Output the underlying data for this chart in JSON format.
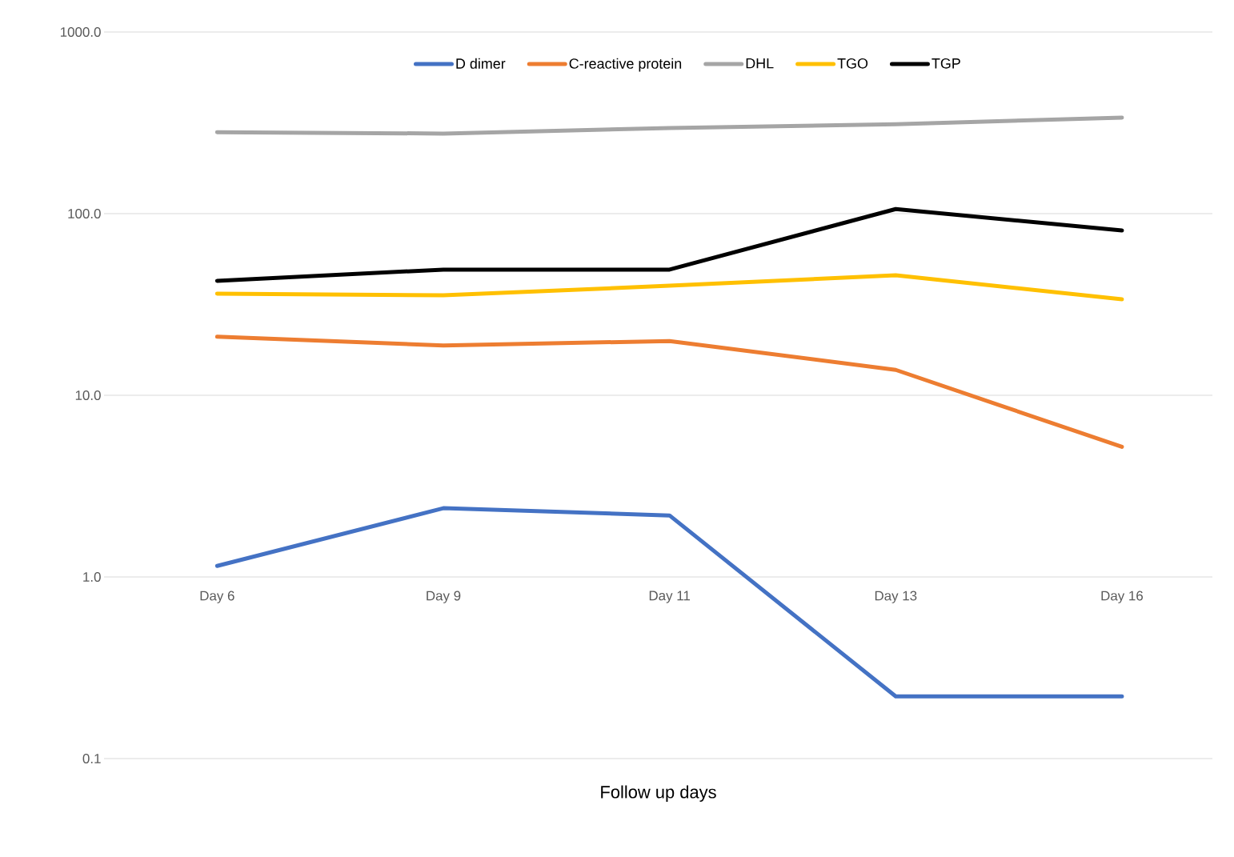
{
  "chart_data": {
    "type": "line",
    "xlabel": "Follow up days",
    "categories": [
      "Day 6",
      "Day 9",
      "Day 11",
      "Day 13",
      "Day 16"
    ],
    "series": [
      {
        "name": "D dimer",
        "color": "#4472c4",
        "values": [
          1.15,
          2.39,
          2.18,
          0.22,
          0.22
        ]
      },
      {
        "name": "C-reactive protein",
        "color": "#ed7d31",
        "values": [
          21.0,
          18.8,
          19.9,
          13.8,
          5.2
        ]
      },
      {
        "name": "DHL",
        "color": "#a5a5a5",
        "values": [
          281,
          276,
          296,
          311,
          338
        ]
      },
      {
        "name": "TGO",
        "color": "#ffc000",
        "values": [
          36.3,
          35.5,
          40.1,
          45.8,
          33.8
        ]
      },
      {
        "name": "TGP",
        "color": "#000000",
        "values": [
          42.7,
          49.2,
          49.2,
          106,
          80.8
        ]
      }
    ],
    "log": "y",
    "ylim": [
      0.1,
      1000
    ],
    "yticks": [
      {
        "value": 0.1,
        "label": "0.1"
      },
      {
        "value": 1,
        "label": "1.0"
      },
      {
        "value": 10,
        "label": "10.0"
      },
      {
        "value": 100,
        "label": "100.0"
      },
      {
        "value": 1000,
        "label": "1000.0"
      }
    ],
    "grid": "y",
    "legend": "top",
    "marker": "none",
    "line_style": "solid"
  }
}
